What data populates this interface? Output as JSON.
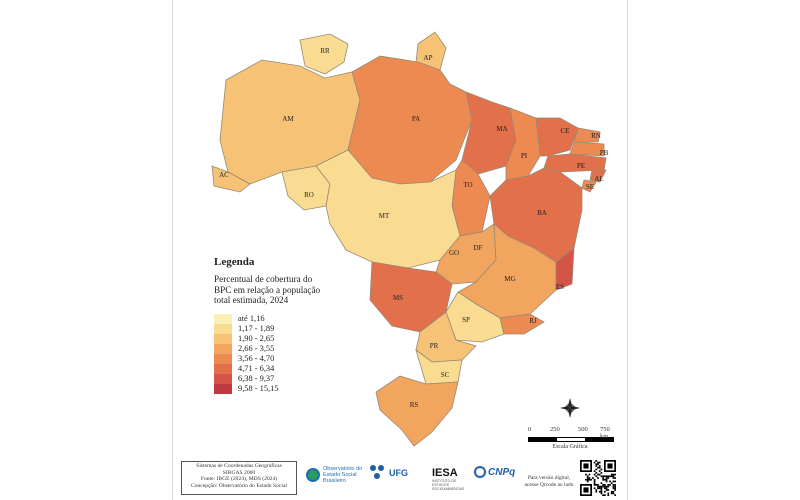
{
  "legend": {
    "title": "Legenda",
    "subtitle_lines": [
      "Percentual de cobertura do",
      "BPC em relação a população",
      "total estimada, 2024"
    ],
    "classes": [
      {
        "label": "até 1,16",
        "color": "#fbf0b4"
      },
      {
        "label": "1,17 - 1,89",
        "color": "#f9dc92"
      },
      {
        "label": "1,90 - 2,65",
        "color": "#f6c276"
      },
      {
        "label": "2,66 - 3,55",
        "color": "#f2a55f"
      },
      {
        "label": "3,56 - 4,70",
        "color": "#ec8a52"
      },
      {
        "label": "4,71 - 6,34",
        "color": "#e2704a"
      },
      {
        "label": "6,38 - 9,37",
        "color": "#d55448"
      },
      {
        "label": "9,58 - 15,15",
        "color": "#c03a44"
      }
    ]
  },
  "states": [
    {
      "abbr": "RR",
      "fill": "#f9dc92"
    },
    {
      "abbr": "AP",
      "fill": "#f6c276"
    },
    {
      "abbr": "AM",
      "fill": "#f6c276"
    },
    {
      "abbr": "PA",
      "fill": "#ec8a52"
    },
    {
      "abbr": "MA",
      "fill": "#e2704a"
    },
    {
      "abbr": "CE",
      "fill": "#e2704a"
    },
    {
      "abbr": "RN",
      "fill": "#ec8a52"
    },
    {
      "abbr": "PB",
      "fill": "#ec8a52"
    },
    {
      "abbr": "PE",
      "fill": "#e2704a"
    },
    {
      "abbr": "AL",
      "fill": "#e2704a"
    },
    {
      "abbr": "SE",
      "fill": "#ec8a52"
    },
    {
      "abbr": "PI",
      "fill": "#ec8a52"
    },
    {
      "abbr": "AC",
      "fill": "#f6c276"
    },
    {
      "abbr": "RO",
      "fill": "#f9dc92"
    },
    {
      "abbr": "TO",
      "fill": "#ec8a52"
    },
    {
      "abbr": "BA",
      "fill": "#e2704a"
    },
    {
      "abbr": "MT",
      "fill": "#f9dc92"
    },
    {
      "abbr": "DF",
      "fill": "#f6c276"
    },
    {
      "abbr": "GO",
      "fill": "#f2a55f"
    },
    {
      "abbr": "MG",
      "fill": "#f2a55f"
    },
    {
      "abbr": "ES",
      "fill": "#d55448"
    },
    {
      "abbr": "MS",
      "fill": "#e2704a"
    },
    {
      "abbr": "SP",
      "fill": "#f9dc92"
    },
    {
      "abbr": "RJ",
      "fill": "#ec8a52"
    },
    {
      "abbr": "PR",
      "fill": "#f6c276"
    },
    {
      "abbr": "SC",
      "fill": "#f9dc92"
    },
    {
      "abbr": "RS",
      "fill": "#f2a55f"
    }
  ],
  "scale": {
    "ticks": [
      "0",
      "250",
      "500",
      "750 km"
    ],
    "label": "Escala Gráfica"
  },
  "footer_lines": [
    "Sistemas de Coordenadas Geográficas",
    "SIRGAS 2000",
    "Fonte: IBGE (2024), MDS (2024)",
    "Concepção: Observatório do Estado Social"
  ],
  "logos": {
    "observatorio": "Observatório do Estado Social Brasileiro",
    "ufg": "UFG",
    "iesa": "IESA",
    "iesa_sub": "INSTITUTO DE ESTUDOS SOCIOAMBIENTAIS",
    "cnpq": "CNPq"
  },
  "digital_note_lines": [
    "Para versão digital,",
    "acesse Qrcode ao lado"
  ],
  "north_icon": "compass-rose-icon",
  "qr_icon": "qr-code-icon"
}
